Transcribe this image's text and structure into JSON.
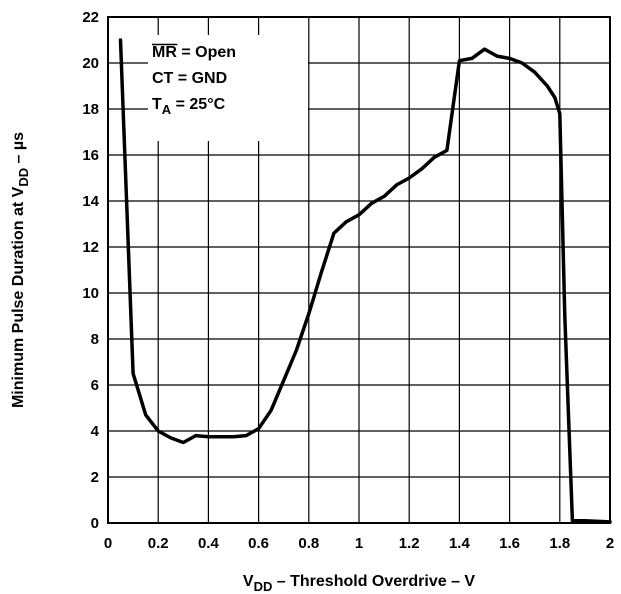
{
  "chart_data": {
    "type": "line",
    "xlabel": {
      "main": "V",
      "sub": "DD",
      "rest": " – Threshold Overdrive – V"
    },
    "ylabel": {
      "main": "Minimum Pulse Duration at V",
      "sub": "DD",
      "rest": " – µs"
    },
    "xlim": [
      0,
      2
    ],
    "ylim": [
      0,
      22
    ],
    "x_ticks": [
      "0",
      "0.2",
      "0.4",
      "0.6",
      "0.8",
      "1",
      "1.2",
      "1.4",
      "1.6",
      "1.8",
      "2"
    ],
    "y_ticks": [
      "0",
      "2",
      "4",
      "6",
      "8",
      "10",
      "12",
      "14",
      "16",
      "18",
      "20",
      "22"
    ],
    "grid": true,
    "legend": "none",
    "annotations": [
      {
        "text": "MR",
        "overline": true,
        "rest": " = Open"
      },
      {
        "text": "CT = GND"
      },
      {
        "text": "T",
        "sub": "A",
        "rest": " = 25°C"
      }
    ],
    "series": [
      {
        "color": "#000000",
        "x": [
          0.05,
          0.1,
          0.15,
          0.2,
          0.25,
          0.3,
          0.35,
          0.4,
          0.45,
          0.5,
          0.55,
          0.6,
          0.65,
          0.7,
          0.75,
          0.8,
          0.85,
          0.9,
          0.95,
          1.0,
          1.05,
          1.1,
          1.15,
          1.2,
          1.25,
          1.3,
          1.35,
          1.4,
          1.45,
          1.5,
          1.55,
          1.6,
          1.65,
          1.7,
          1.75,
          1.78,
          1.8,
          1.82,
          1.85,
          1.9,
          2.0
        ],
        "y": [
          21.0,
          6.5,
          4.7,
          4.0,
          3.7,
          3.5,
          3.8,
          3.75,
          3.75,
          3.75,
          3.8,
          4.1,
          4.9,
          6.2,
          7.5,
          9.1,
          10.9,
          12.6,
          13.1,
          13.4,
          13.9,
          14.2,
          14.7,
          15.0,
          15.4,
          15.9,
          16.2,
          20.1,
          20.2,
          20.6,
          20.3,
          20.2,
          20.0,
          19.6,
          19.0,
          18.5,
          17.8,
          9.0,
          0.1,
          0.1,
          0.05
        ]
      }
    ]
  }
}
